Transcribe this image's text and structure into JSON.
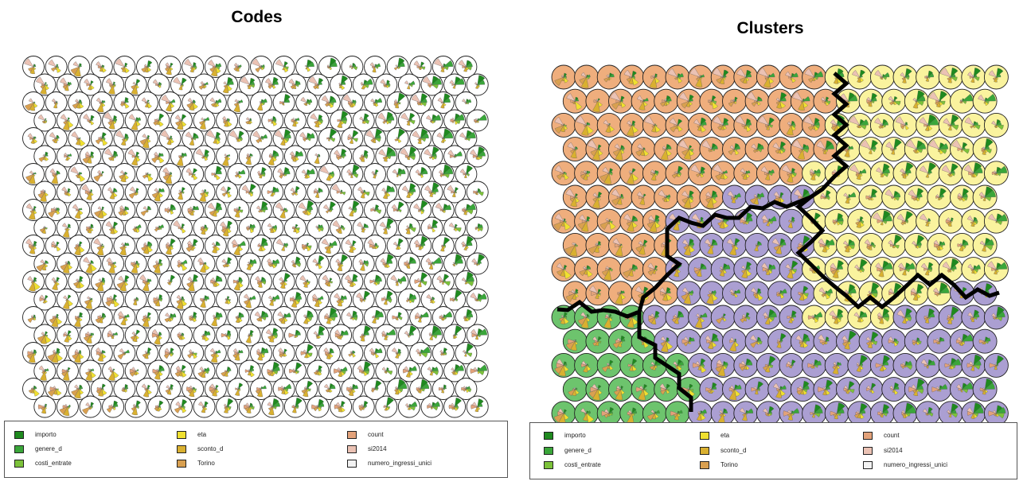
{
  "codes_panel": {
    "title": "Codes"
  },
  "clusters_panel": {
    "title": "Clusters"
  },
  "legend": [
    {
      "label": "importo",
      "color": "#1f8a1f"
    },
    {
      "label": "genere_d",
      "color": "#3aa63a"
    },
    {
      "label": "costi_entrate",
      "color": "#7cc23a"
    },
    {
      "label": "eta",
      "color": "#f0e030"
    },
    {
      "label": "sconto_d",
      "color": "#d9b030"
    },
    {
      "label": "Torino",
      "color": "#d9a050"
    },
    {
      "label": "count",
      "color": "#e3a27a"
    },
    {
      "label": "si2014",
      "color": "#ebc2b4"
    },
    {
      "label": "numero_ingressi_unici",
      "color": "#f2f2f2"
    }
  ],
  "chart_data": [
    {
      "type": "som-codes",
      "title": "Codes",
      "grid": {
        "cols": 20,
        "rows": 20,
        "topology": "hexagonal"
      },
      "variables": [
        "importo",
        "genere_d",
        "costi_entrate",
        "eta",
        "sconto_d",
        "Torino",
        "count",
        "si2014",
        "numero_ingressi_unici"
      ]
    },
    {
      "type": "som-clusters",
      "title": "Clusters",
      "grid": {
        "cols": 20,
        "rows": 15,
        "topology": "hexagonal"
      },
      "variables": [
        "importo",
        "genere_d",
        "costi_entrate",
        "eta",
        "sconto_d",
        "Torino",
        "count",
        "si2014",
        "numero_ingressi_unici"
      ],
      "clusters": [
        {
          "id": 1,
          "color": "#efae7d"
        },
        {
          "id": 2,
          "color": "#faf39e"
        },
        {
          "id": 3,
          "color": "#ab9fd2"
        },
        {
          "id": 4,
          "color": "#6dc46d"
        }
      ]
    }
  ]
}
